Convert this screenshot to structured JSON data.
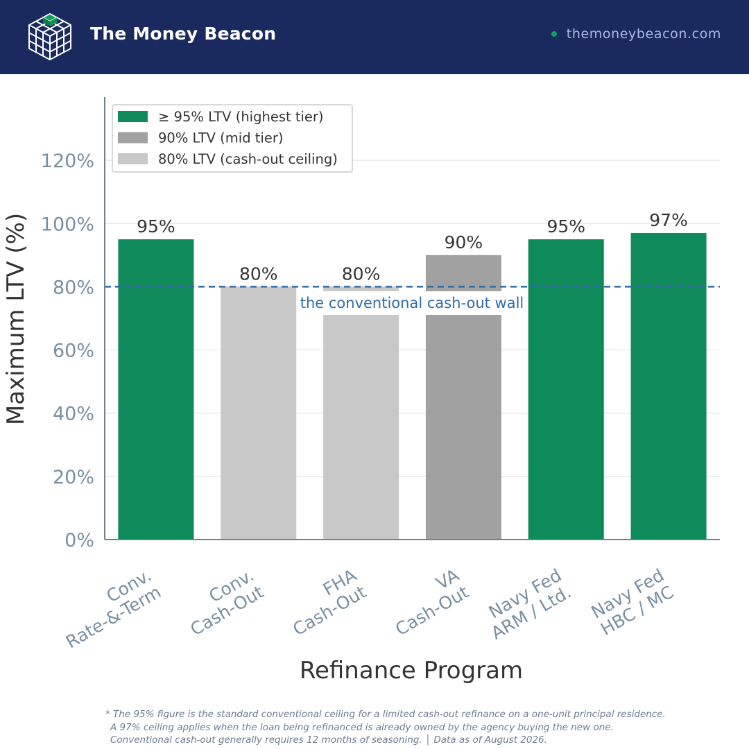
{
  "header": {
    "brand": "The Money Beacon",
    "site": "themoneybeacon.com",
    "logo_icon": "cube-grid-icon"
  },
  "colors": {
    "header_bg": "#1b2a5e",
    "tier_high": "#0f8a5b",
    "tier_mid": "#a1a1a1",
    "tier_low": "#c8c8c8",
    "reference_line": "#2e6da4",
    "axis_text": "#7a8ea0"
  },
  "chart_data": {
    "type": "bar",
    "title": "",
    "xlabel": "Refinance Program",
    "ylabel": "Maximum LTV (%)",
    "ylim": [
      0,
      140
    ],
    "yticks": [
      0,
      20,
      40,
      60,
      80,
      100,
      120
    ],
    "ytick_labels": [
      "0%",
      "20%",
      "40%",
      "60%",
      "80%",
      "100%",
      "120%"
    ],
    "grid": true,
    "categories": [
      [
        "Conv.",
        "Rate-&-Term"
      ],
      [
        "Conv.",
        "Cash-Out"
      ],
      [
        "FHA",
        "Cash-Out"
      ],
      [
        "VA",
        "Cash-Out"
      ],
      [
        "Navy Fed",
        "ARM / Ltd."
      ],
      [
        "Navy Fed",
        "HBC / MC"
      ]
    ],
    "values": [
      95,
      80,
      80,
      90,
      95,
      97
    ],
    "data_labels": [
      "95%",
      "80%",
      "80%",
      "90%",
      "95%",
      "97%"
    ],
    "tiers": [
      "high",
      "low",
      "low",
      "mid",
      "high",
      "high"
    ],
    "legend": {
      "placement": "top-left",
      "entries": [
        {
          "tier": "high",
          "label": "≥ 95% LTV (highest tier)"
        },
        {
          "tier": "mid",
          "label": "90% LTV (mid tier)"
        },
        {
          "tier": "low",
          "label": "80% LTV (cash-out ceiling)"
        }
      ]
    },
    "reference_line": {
      "value": 80,
      "style": "dashed",
      "label": "the conventional cash-out wall"
    }
  },
  "footnote": {
    "line1": "* The 95% figure is the standard conventional ceiling for a limited cash-out refinance on a one-unit principal residence.",
    "line2": "A 97% ceiling applies when the loan being refinanced is already owned by the agency buying the new one.",
    "line3": "Conventional cash-out generally requires 12 months of seasoning.  │  Data as of August 2026."
  }
}
